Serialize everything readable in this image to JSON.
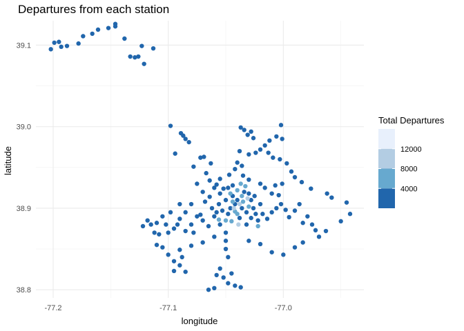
{
  "chart_data": {
    "type": "scatter",
    "title": "Departures from each station",
    "xlabel": "longitude",
    "ylabel": "latitude",
    "xlim": [
      -77.215,
      -76.93
    ],
    "ylim": [
      38.79,
      39.13
    ],
    "x_ticks": [
      -77.2,
      -77.1,
      -77.0
    ],
    "x_tick_labels": [
      "-77.2",
      "-77.1",
      "-77.0"
    ],
    "y_ticks": [
      38.8,
      38.9,
      39.0,
      39.1
    ],
    "y_tick_labels": [
      "38.8",
      "38.9",
      "39.0",
      "39.1"
    ],
    "grid": true,
    "legend": {
      "title": "Total Departures",
      "placement": "right",
      "breaks": [
        4000,
        8000,
        12000
      ],
      "break_labels": [
        "4000",
        "8000",
        "12000"
      ],
      "bins": [
        {
          "min": 0,
          "max": 4000,
          "color": "#2166ac"
        },
        {
          "min": 4000,
          "max": 8000,
          "color": "#67a9cf"
        },
        {
          "min": 8000,
          "max": 12000,
          "color": "#b3cde3"
        },
        {
          "min": 12000,
          "max": 16000,
          "color": "#e8f0fc"
        }
      ]
    },
    "points": [
      [
        -77.202,
        39.095,
        1000
      ],
      [
        -77.199,
        39.103,
        1000
      ],
      [
        -77.195,
        39.104,
        1000
      ],
      [
        -77.193,
        39.098,
        1000
      ],
      [
        -77.188,
        39.099,
        1000
      ],
      [
        -77.178,
        39.102,
        1000
      ],
      [
        -77.174,
        39.111,
        1000
      ],
      [
        -77.166,
        39.114,
        1000
      ],
      [
        -77.161,
        39.119,
        1000
      ],
      [
        -77.152,
        39.121,
        1000
      ],
      [
        -77.146,
        39.126,
        1000
      ],
      [
        -77.146,
        39.123,
        1000
      ],
      [
        -77.138,
        39.108,
        1000
      ],
      [
        -77.133,
        39.086,
        1000
      ],
      [
        -77.129,
        39.085,
        1000
      ],
      [
        -77.126,
        39.086,
        1000
      ],
      [
        -77.123,
        39.099,
        1000
      ],
      [
        -77.121,
        39.077,
        1000
      ],
      [
        -77.113,
        39.096,
        1000
      ],
      [
        -77.098,
        39.001,
        1000
      ],
      [
        -77.089,
        38.992,
        1000
      ],
      [
        -77.087,
        38.989,
        1000
      ],
      [
        -77.085,
        38.985,
        1000
      ],
      [
        -77.082,
        38.981,
        1000
      ],
      [
        -77.094,
        38.967,
        1000
      ],
      [
        -77.078,
        38.951,
        1000
      ],
      [
        -77.072,
        38.962,
        1000
      ],
      [
        -77.069,
        38.963,
        1000
      ],
      [
        -77.063,
        38.955,
        1000
      ],
      [
        -77.067,
        38.943,
        1000
      ],
      [
        -77.064,
        38.934,
        1000
      ],
      [
        -77.058,
        38.929,
        1000
      ],
      [
        -77.052,
        38.924,
        1000
      ],
      [
        -77.055,
        38.936,
        1000
      ],
      [
        -77.047,
        38.941,
        1000
      ],
      [
        -77.042,
        38.948,
        1000
      ],
      [
        -77.04,
        38.956,
        1000
      ],
      [
        -77.036,
        38.952,
        1000
      ],
      [
        -77.038,
        38.97,
        1000
      ],
      [
        -77.03,
        38.966,
        1000
      ],
      [
        -77.024,
        38.968,
        1000
      ],
      [
        -77.02,
        38.972,
        1000
      ],
      [
        -77.016,
        38.977,
        1000
      ],
      [
        -77.012,
        38.983,
        1000
      ],
      [
        -77.006,
        38.988,
        1000
      ],
      [
        -77.002,
        39.002,
        1000
      ],
      [
        -77.001,
        38.985,
        1000
      ],
      [
        -77.034,
        38.996,
        1000
      ],
      [
        -77.037,
        38.999,
        1000
      ],
      [
        -77.031,
        38.99,
        1000
      ],
      [
        -77.028,
        38.994,
        1000
      ],
      [
        -77.026,
        38.986,
        1000
      ],
      [
        -77.013,
        38.968,
        1000
      ],
      [
        -77.009,
        38.962,
        1000
      ],
      [
        -77.003,
        38.96,
        1000
      ],
      [
        -76.997,
        38.955,
        1000
      ],
      [
        -76.993,
        38.945,
        1000
      ],
      [
        -76.99,
        38.938,
        1000
      ],
      [
        -76.984,
        38.932,
        1000
      ],
      [
        -76.976,
        38.924,
        1000
      ],
      [
        -76.962,
        38.918,
        1000
      ],
      [
        -76.958,
        38.913,
        1000
      ],
      [
        -76.945,
        38.907,
        1000
      ],
      [
        -76.942,
        38.893,
        1000
      ],
      [
        -76.95,
        38.884,
        1000
      ],
      [
        -76.963,
        38.872,
        1000
      ],
      [
        -76.969,
        38.865,
        1000
      ],
      [
        -76.983,
        38.858,
        1000
      ],
      [
        -76.99,
        38.852,
        1000
      ],
      [
        -77.0,
        38.843,
        1000
      ],
      [
        -77.01,
        38.846,
        1000
      ],
      [
        -77.02,
        38.856,
        1000
      ],
      [
        -77.03,
        38.86,
        1000
      ],
      [
        -77.05,
        38.86,
        1000
      ],
      [
        -77.06,
        38.865,
        1000
      ],
      [
        -77.07,
        38.858,
        1000
      ],
      [
        -77.08,
        38.854,
        1000
      ],
      [
        -77.09,
        38.849,
        1000
      ],
      [
        -77.1,
        38.843,
        1000
      ],
      [
        -77.11,
        38.855,
        1000
      ],
      [
        -77.122,
        38.878,
        1000
      ],
      [
        -77.118,
        38.885,
        1000
      ],
      [
        -77.11,
        38.882,
        1000
      ],
      [
        -77.105,
        38.89,
        1000
      ],
      [
        -77.098,
        38.895,
        1000
      ],
      [
        -77.09,
        38.887,
        1000
      ],
      [
        -77.085,
        38.895,
        1000
      ],
      [
        -77.08,
        38.88,
        1000
      ],
      [
        -77.075,
        38.89,
        1000
      ],
      [
        -77.07,
        38.885,
        1000
      ],
      [
        -77.065,
        38.878,
        1000
      ],
      [
        -77.06,
        38.89,
        1000
      ],
      [
        -77.055,
        38.88,
        1000
      ],
      [
        -77.05,
        38.87,
        1000
      ],
      [
        -77.05,
        38.85,
        1000
      ],
      [
        -77.048,
        38.84,
        1000
      ],
      [
        -77.055,
        38.826,
        1000
      ],
      [
        -77.052,
        38.815,
        1000
      ],
      [
        -77.048,
        38.808,
        1000
      ],
      [
        -77.042,
        38.805,
        1000
      ],
      [
        -77.037,
        38.803,
        1000
      ],
      [
        -77.06,
        38.802,
        1000
      ],
      [
        -77.065,
        38.8,
        1000
      ],
      [
        -77.045,
        38.82,
        1000
      ],
      [
        -77.058,
        38.818,
        1000
      ],
      [
        -77.085,
        38.822,
        1000
      ],
      [
        -77.09,
        38.83,
        1000
      ],
      [
        -77.095,
        38.835,
        1000
      ],
      [
        -77.095,
        38.823,
        1000
      ],
      [
        -77.088,
        38.84,
        1000
      ],
      [
        -77.105,
        38.852,
        1000
      ],
      [
        -77.108,
        38.868,
        1000
      ],
      [
        -77.1,
        38.87,
        1000
      ],
      [
        -77.095,
        38.875,
        1000
      ],
      [
        -77.085,
        38.872,
        1000
      ],
      [
        -77.078,
        38.87,
        1000
      ],
      [
        -77.072,
        38.892,
        1000
      ],
      [
        -77.068,
        38.908,
        1000
      ],
      [
        -77.064,
        38.914,
        1000
      ],
      [
        -77.07,
        38.92,
        1000
      ],
      [
        -77.075,
        38.93,
        1000
      ],
      [
        -77.062,
        38.9,
        1000
      ],
      [
        -77.058,
        38.895,
        1000
      ],
      [
        -77.056,
        38.905,
        1000
      ],
      [
        -77.053,
        38.897,
        1000
      ],
      [
        -77.05,
        38.91,
        1000
      ],
      [
        -77.046,
        38.9,
        1000
      ],
      [
        -77.038,
        38.888,
        1000
      ],
      [
        -77.032,
        38.88,
        1000
      ],
      [
        -77.028,
        38.888,
        1000
      ],
      [
        -77.022,
        38.885,
        1000
      ],
      [
        -77.018,
        38.893,
        1000
      ],
      [
        -77.014,
        38.887,
        1000
      ],
      [
        -77.01,
        38.895,
        1000
      ],
      [
        -77.006,
        38.9,
        1000
      ],
      [
        -77.002,
        38.905,
        1000
      ],
      [
        -76.998,
        38.898,
        1000
      ],
      [
        -76.995,
        38.889,
        1000
      ],
      [
        -76.99,
        38.897,
        1000
      ],
      [
        -76.986,
        38.905,
        1000
      ],
      [
        -76.983,
        38.882,
        1000
      ],
      [
        -76.979,
        38.89,
        1000
      ],
      [
        -76.975,
        38.88,
        1000
      ],
      [
        -76.972,
        38.873,
        1000
      ],
      [
        -77.004,
        38.916,
        1000
      ],
      [
        -77.01,
        38.918,
        1000
      ],
      [
        -77.016,
        38.925,
        1000
      ],
      [
        -77.02,
        38.93,
        1000
      ],
      [
        -77.025,
        38.915,
        1000
      ],
      [
        -77.035,
        38.94,
        1000
      ],
      [
        -77.03,
        38.935,
        1000
      ],
      [
        -77.001,
        38.93,
        1000
      ],
      [
        -77.007,
        38.928,
        1000
      ],
      [
        -77.02,
        38.905,
        1000
      ],
      [
        -77.055,
        38.918,
        1000
      ],
      [
        -77.06,
        38.925,
        1000
      ],
      [
        -77.048,
        38.925,
        1000
      ],
      [
        -77.044,
        38.928,
        1000
      ],
      [
        -77.09,
        38.905,
        1000
      ],
      [
        -77.08,
        38.905,
        1000
      ],
      [
        -77.112,
        38.87,
        1000
      ],
      [
        -77.115,
        38.88,
        1000
      ],
      [
        -77.102,
        38.88,
        1000
      ],
      [
        -77.092,
        38.88,
        1000
      ],
      [
        -77.04,
        38.91,
        3000
      ],
      [
        -77.042,
        38.905,
        3000
      ],
      [
        -77.034,
        38.92,
        3000
      ],
      [
        -77.03,
        38.918,
        3000
      ],
      [
        -77.028,
        38.91,
        3000
      ],
      [
        -77.036,
        38.9,
        3000
      ],
      [
        -77.032,
        38.895,
        3000
      ],
      [
        -77.026,
        38.9,
        3000
      ],
      [
        -77.024,
        38.893,
        3000
      ],
      [
        -77.044,
        38.915,
        3000
      ],
      [
        -77.048,
        38.893,
        3000
      ],
      [
        -77.04,
        38.922,
        6000
      ],
      [
        -77.036,
        38.915,
        6000
      ],
      [
        -77.044,
        38.908,
        6000
      ],
      [
        -77.046,
        38.918,
        6000
      ],
      [
        -77.033,
        38.927,
        6000
      ],
      [
        -77.037,
        38.93,
        6000
      ],
      [
        -77.042,
        38.896,
        6000
      ],
      [
        -77.035,
        38.908,
        6000
      ],
      [
        -77.03,
        38.902,
        6000
      ],
      [
        -77.05,
        38.885,
        6000
      ],
      [
        -77.04,
        38.893,
        6000
      ],
      [
        -77.045,
        38.884,
        6000
      ],
      [
        -77.038,
        38.905,
        10000
      ],
      [
        -77.031,
        38.912,
        10000
      ],
      [
        -77.039,
        38.88,
        10000
      ],
      [
        -77.043,
        38.9,
        10000
      ],
      [
        -77.022,
        38.878,
        6000
      ],
      [
        -77.056,
        38.886,
        6000
      ]
    ]
  }
}
